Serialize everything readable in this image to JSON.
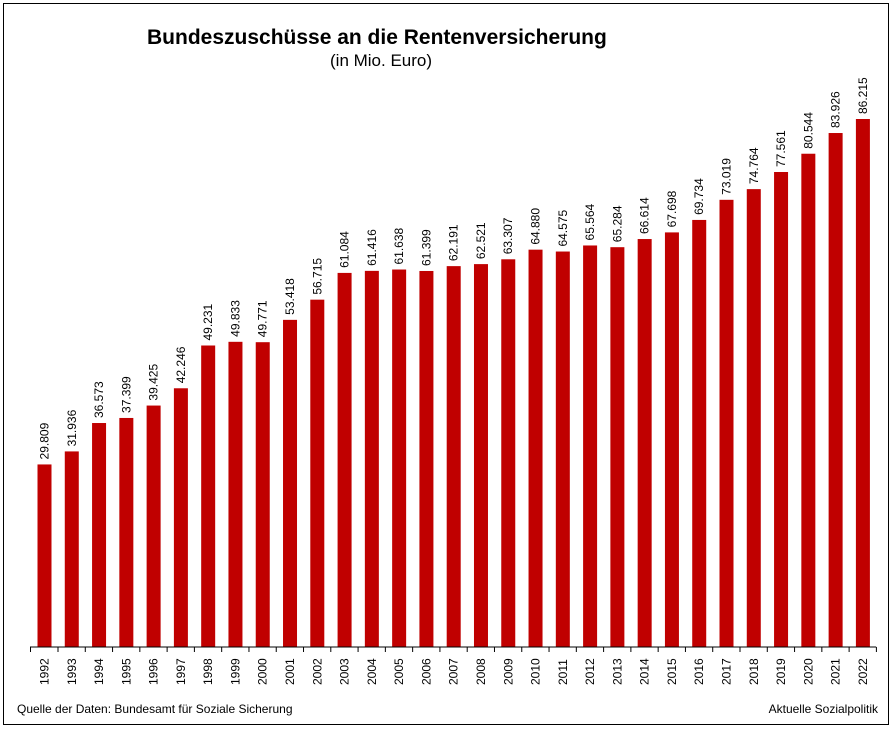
{
  "chart_data": {
    "type": "bar",
    "title": "Bundeszuschüsse an die Rentenversicherung",
    "subtitle": "(in Mio. Euro)",
    "xlabel": "",
    "ylabel": "",
    "ylim": [
      0,
      86215
    ],
    "grid": false,
    "categories": [
      "1992",
      "1993",
      "1994",
      "1995",
      "1996",
      "1997",
      "1998",
      "1999",
      "2000",
      "2001",
      "2002",
      "2003",
      "2004",
      "2005",
      "2006",
      "2007",
      "2008",
      "2009",
      "2010",
      "2011",
      "2012",
      "2013",
      "2014",
      "2015",
      "2016",
      "2017",
      "2018",
      "2019",
      "2020",
      "2021",
      "2022"
    ],
    "values": [
      29809,
      31936,
      36573,
      37399,
      39425,
      42246,
      49231,
      49833,
      49771,
      53418,
      56715,
      61084,
      61416,
      61638,
      61399,
      62191,
      62521,
      63307,
      64880,
      64575,
      65564,
      65284,
      66614,
      67698,
      69734,
      73019,
      74764,
      77561,
      80544,
      83926,
      86215
    ],
    "labels": [
      "29.809",
      "31.936",
      "36.573",
      "37.399",
      "39.425",
      "42.246",
      "49.231",
      "49.833",
      "49.771",
      "53.418",
      "56.715",
      "61.084",
      "61.416",
      "61.638",
      "61.399",
      "62.191",
      "62.521",
      "63.307",
      "64.880",
      "64.575",
      "65.564",
      "65.284",
      "66.614",
      "67.698",
      "69.734",
      "73.019",
      "74.764",
      "77.561",
      "80.544",
      "83.926",
      "86.215"
    ],
    "bar_color": "#c00000",
    "source": "Quelle der Daten: Bundesamt für Soziale Sicherung",
    "credit": "Aktuelle Sozialpolitik"
  }
}
